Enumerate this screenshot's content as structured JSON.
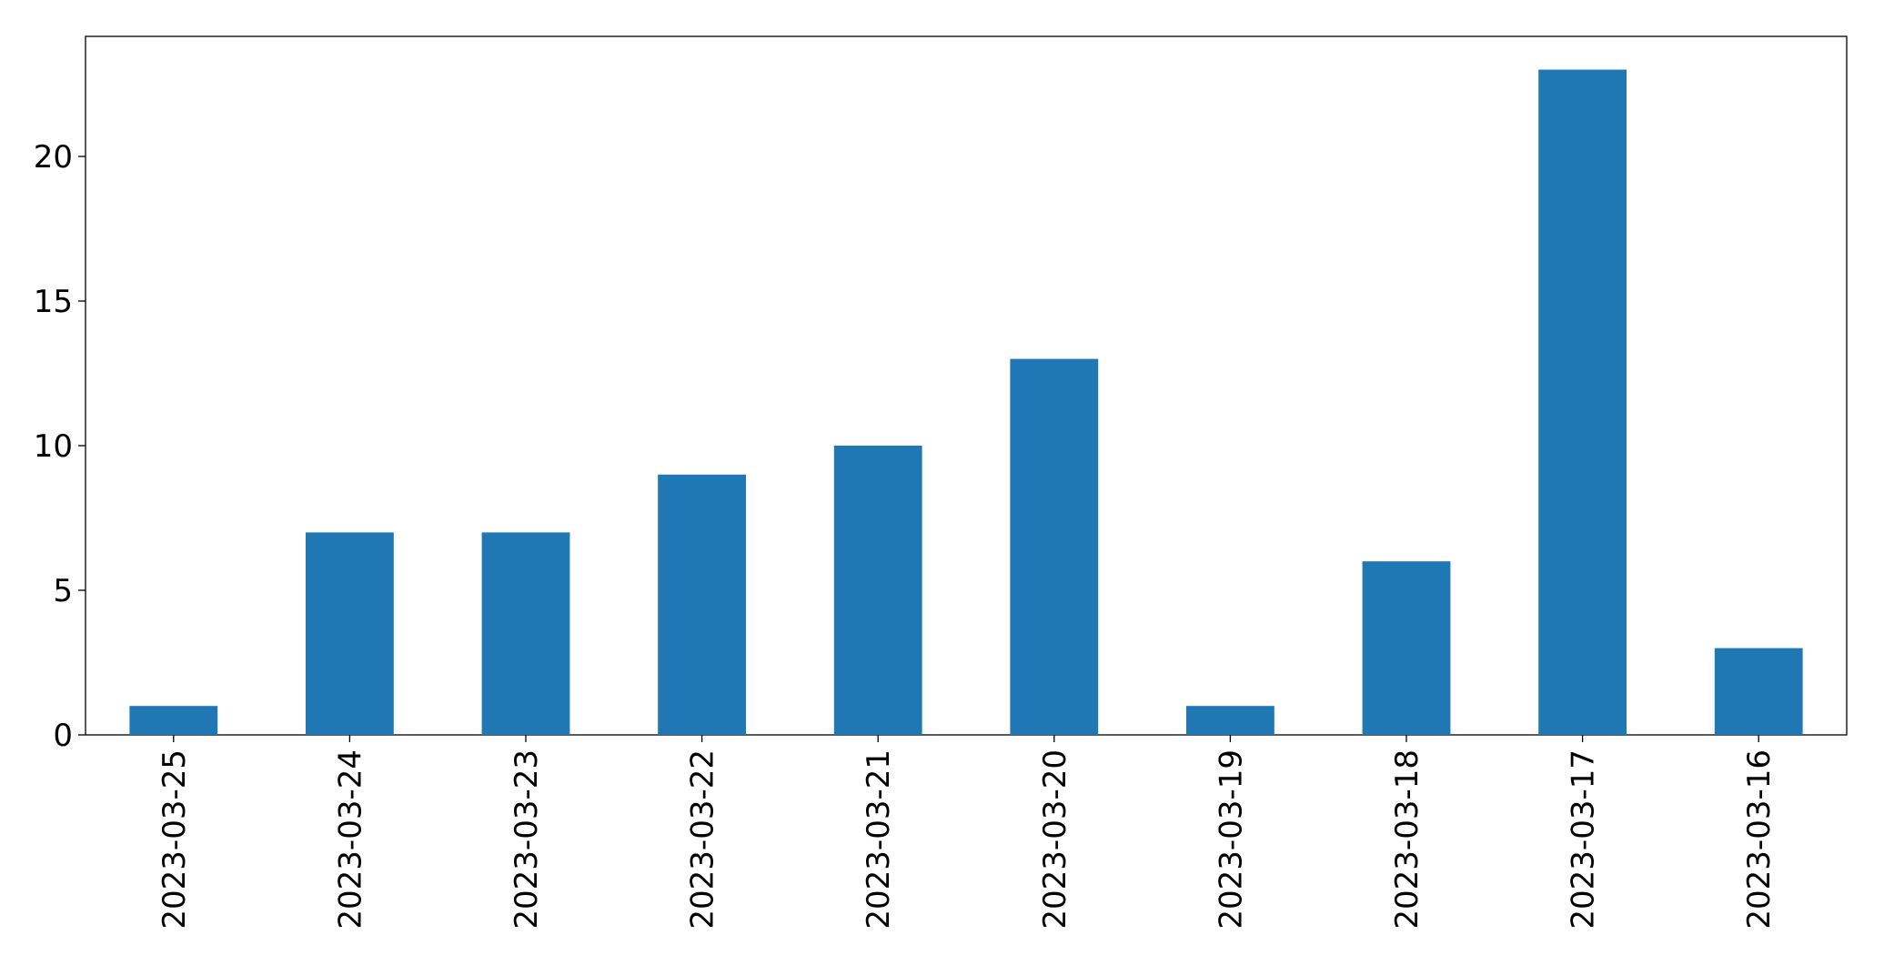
{
  "chart_data": {
    "type": "bar",
    "categories": [
      "2023-03-25",
      "2023-03-24",
      "2023-03-23",
      "2023-03-22",
      "2023-03-21",
      "2023-03-20",
      "2023-03-19",
      "2023-03-18",
      "2023-03-17",
      "2023-03-16"
    ],
    "values": [
      1,
      7,
      7,
      9,
      10,
      13,
      1,
      6,
      23,
      3
    ],
    "color": "#1f77b4",
    "ylim": [
      0,
      24.15
    ],
    "yticks": [
      0,
      5,
      10,
      15,
      20
    ],
    "grid": false
  }
}
